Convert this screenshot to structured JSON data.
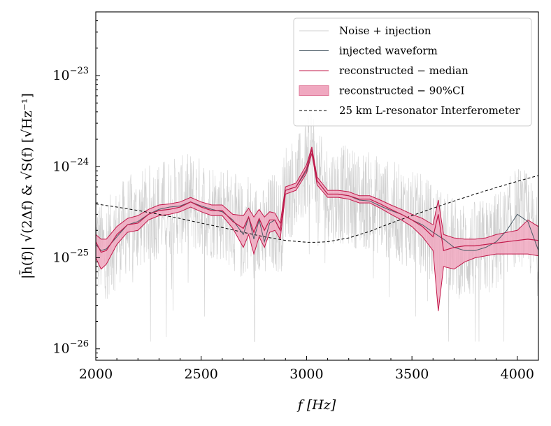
{
  "chart_data": {
    "type": "line",
    "title": "",
    "xlabel": "f [Hz]",
    "ylabel": "|h̃(f)| √(2Δf) & √S(f)   [√Hz⁻¹]",
    "xlim": [
      2000,
      4100
    ],
    "ylim": [
      7.5e-27,
      5e-23
    ],
    "yscale": "log",
    "x_ticks": [
      {
        "value": 2000,
        "label": "2000"
      },
      {
        "value": 2500,
        "label": "2500"
      },
      {
        "value": 3000,
        "label": "3000"
      },
      {
        "value": 3500,
        "label": "3500"
      },
      {
        "value": 4000,
        "label": "4000"
      }
    ],
    "y_ticks": [
      {
        "value": 1e-26,
        "label": "10",
        "exp": "−26"
      },
      {
        "value": 1e-25,
        "label": "10",
        "exp": "−25"
      },
      {
        "value": 1e-24,
        "label": "10",
        "exp": "−24"
      },
      {
        "value": 1e-23,
        "label": "10",
        "exp": "−23"
      }
    ],
    "grid": false,
    "legend_position": "top-right",
    "legend": [
      {
        "label": "Noise + injection",
        "color": "#d0d0d0",
        "style": "line"
      },
      {
        "label": "injected waveform",
        "color": "#4a5a66",
        "style": "line"
      },
      {
        "label": "reconstructed − median",
        "color": "#c2184a",
        "style": "line"
      },
      {
        "label": "reconstructed − 90%CI",
        "color": "#f0a8c0",
        "style": "patch"
      },
      {
        "label": "25 km L-resonator Interferometer",
        "color": "#000000",
        "style": "dashed"
      }
    ],
    "series": [
      {
        "name": "25 km L-resonator Interferometer",
        "color": "#000000",
        "style": "dashed",
        "x": [
          2000,
          2100,
          2200,
          2300,
          2400,
          2500,
          2600,
          2700,
          2800,
          2900,
          3000,
          3050,
          3100,
          3200,
          3300,
          3400,
          3500,
          3600,
          3700,
          3800,
          3900,
          4000,
          4100
        ],
        "y": [
          3.9e-25,
          3.6e-25,
          3.3e-25,
          3e-25,
          2.7e-25,
          2.4e-25,
          2.15e-25,
          1.9e-25,
          1.7e-25,
          1.55e-25,
          1.48e-25,
          1.48e-25,
          1.5e-25,
          1.65e-25,
          1.95e-25,
          2.4e-25,
          2.9e-25,
          3.5e-25,
          4.2e-25,
          5e-25,
          5.9e-25,
          6.9e-25,
          8e-25
        ]
      },
      {
        "name": "injected waveform",
        "color": "#4a5a66",
        "style": "line",
        "x": [
          2000,
          2025,
          2050,
          2100,
          2150,
          2200,
          2250,
          2300,
          2350,
          2400,
          2450,
          2500,
          2550,
          2600,
          2650,
          2700,
          2725,
          2750,
          2775,
          2800,
          2825,
          2850,
          2875,
          2900,
          2950,
          3000,
          3025,
          3050,
          3100,
          3150,
          3200,
          3250,
          3300,
          3350,
          3400,
          3450,
          3500,
          3550,
          3600,
          3650,
          3700,
          3750,
          3800,
          3850,
          3900,
          3950,
          4000,
          4050,
          4100
        ],
        "y": [
          1.4e-25,
          1.2e-25,
          1.25e-25,
          1.7e-25,
          2.3e-25,
          2.5e-25,
          3e-25,
          3.4e-25,
          3.6e-25,
          3.7e-25,
          4.1e-25,
          3.7e-25,
          3.4e-25,
          3.2e-25,
          2.6e-25,
          1.8e-25,
          2.8e-25,
          1.6e-25,
          2.6e-25,
          1.5e-25,
          2.4e-25,
          2.6e-25,
          2e-25,
          5.5e-25,
          6e-25,
          9e-25,
          1.55e-24,
          7e-25,
          5e-25,
          5e-25,
          4.8e-25,
          4.3e-25,
          4.2e-25,
          3.7e-25,
          3.3e-25,
          3e-25,
          2.6e-25,
          2.3e-25,
          1.9e-25,
          1.6e-25,
          1.3e-25,
          1.2e-25,
          1.2e-25,
          1.3e-25,
          1.5e-25,
          2e-25,
          3e-25,
          2.5e-25,
          1.2e-25
        ]
      },
      {
        "name": "reconstructed − median",
        "color": "#c2184a",
        "style": "line",
        "x": [
          2000,
          2025,
          2050,
          2100,
          2150,
          2200,
          2250,
          2300,
          2350,
          2400,
          2450,
          2500,
          2550,
          2600,
          2650,
          2700,
          2725,
          2750,
          2775,
          2800,
          2825,
          2850,
          2875,
          2900,
          2950,
          3000,
          3025,
          3050,
          3100,
          3150,
          3200,
          3250,
          3300,
          3350,
          3400,
          3450,
          3500,
          3550,
          3600,
          3625,
          3650,
          3700,
          3750,
          3800,
          3850,
          3900,
          3950,
          4000,
          4050,
          4100
        ],
        "y": [
          1.5e-25,
          1.15e-25,
          1.2e-25,
          1.8e-25,
          2.3e-25,
          2.4e-25,
          3e-25,
          3.3e-25,
          3.4e-25,
          3.6e-25,
          4.1e-25,
          3.6e-25,
          3.3e-25,
          3.3e-25,
          2.5e-25,
          2.1e-25,
          2.8e-25,
          1.9e-25,
          2.7e-25,
          2e-25,
          2.6e-25,
          2.6e-25,
          2e-25,
          5.5e-25,
          6e-25,
          9.5e-25,
          1.55e-24,
          7e-25,
          5e-25,
          5e-25,
          4.8e-25,
          4.4e-25,
          4.4e-25,
          3.9e-25,
          3.4e-25,
          3e-25,
          2.6e-25,
          2.2e-25,
          1.7e-25,
          3e-25,
          1.2e-25,
          1.3e-25,
          1.35e-25,
          1.35e-25,
          1.4e-25,
          1.45e-25,
          1.5e-25,
          1.55e-25,
          1.6e-25,
          1.55e-25
        ]
      },
      {
        "name": "reconstructed − 90%CI",
        "color": "#f0a8c0",
        "style": "band",
        "x": [
          2000,
          2025,
          2050,
          2100,
          2150,
          2200,
          2250,
          2300,
          2350,
          2400,
          2450,
          2500,
          2550,
          2600,
          2650,
          2700,
          2725,
          2750,
          2775,
          2800,
          2825,
          2850,
          2875,
          2900,
          2950,
          3000,
          3025,
          3050,
          3100,
          3150,
          3200,
          3250,
          3300,
          3350,
          3400,
          3450,
          3500,
          3550,
          3600,
          3625,
          3650,
          3700,
          3750,
          3800,
          3850,
          3900,
          3950,
          4000,
          4050,
          4100
        ],
        "y_low": [
          1e-25,
          7.5e-26,
          8.5e-26,
          1.4e-25,
          1.9e-25,
          2e-25,
          2.6e-25,
          2.9e-25,
          3e-25,
          3.2e-25,
          3.6e-25,
          3.2e-25,
          2.9e-25,
          2.9e-25,
          2.1e-25,
          1.3e-25,
          1.8e-25,
          1.1e-25,
          1.7e-25,
          1.3e-25,
          1.9e-25,
          2e-25,
          1.6e-25,
          5e-25,
          5.5e-25,
          8.5e-25,
          1.4e-24,
          6.3e-25,
          4.6e-25,
          4.6e-25,
          4.4e-25,
          4e-25,
          4e-25,
          3.5e-25,
          3e-25,
          2.6e-25,
          2.2e-25,
          1.7e-25,
          1.2e-25,
          2.6e-26,
          8e-26,
          7.5e-26,
          9e-26,
          1e-25,
          1.05e-25,
          1.1e-25,
          1.1e-25,
          1.1e-25,
          1.1e-25,
          1.05e-25
        ],
        "y_high": [
          1.8e-25,
          1.6e-25,
          1.6e-25,
          2.2e-25,
          2.7e-25,
          2.9e-25,
          3.4e-25,
          3.8e-25,
          3.9e-25,
          4.1e-25,
          4.6e-25,
          4.1e-25,
          3.8e-25,
          3.8e-25,
          3e-25,
          2.9e-25,
          3.5e-25,
          2.8e-25,
          3.4e-25,
          2.8e-25,
          3.2e-25,
          3.1e-25,
          2.4e-25,
          6e-25,
          6.6e-25,
          1.05e-24,
          1.65e-24,
          7.7e-25,
          5.5e-25,
          5.5e-25,
          5.3e-25,
          4.8e-25,
          4.8e-25,
          4.3e-25,
          3.8e-25,
          3.4e-25,
          3e-25,
          2.7e-25,
          2.3e-25,
          4.3e-25,
          1.8e-25,
          1.65e-25,
          1.6e-25,
          1.6e-25,
          1.65e-25,
          1.8e-25,
          1.9e-25,
          2e-25,
          2.6e-25,
          2.2e-25
        ]
      }
    ]
  }
}
